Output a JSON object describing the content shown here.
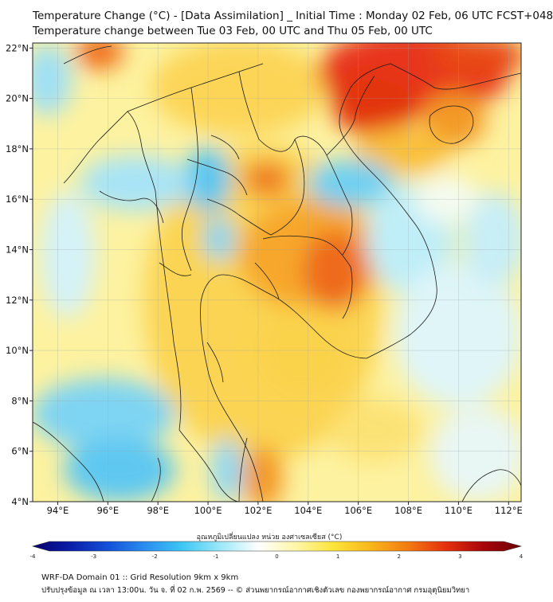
{
  "title_line1": "Temperature Change (°C) - [Data Assimilation] _ Initial Time : Monday 02 Feb, 06 UTC FCST+048",
  "title_line2": "Temperature change between Tue 03 Feb, 00 UTC and Thu 05 Feb, 00 UTC",
  "map": {
    "lon_range": [
      93,
      112.5
    ],
    "lat_range": [
      4,
      22.2
    ],
    "x_ticks": [
      "94°E",
      "96°E",
      "98°E",
      "100°E",
      "102°E",
      "104°E",
      "106°E",
      "108°E",
      "110°E",
      "112°E"
    ],
    "x_tick_values": [
      94,
      96,
      98,
      100,
      102,
      104,
      106,
      108,
      110,
      112
    ],
    "y_ticks": [
      "22°N",
      "20°N",
      "18°N",
      "16°N",
      "14°N",
      "12°N",
      "10°N",
      "8°N",
      "6°N",
      "4°N"
    ],
    "y_tick_values": [
      22,
      20,
      18,
      16,
      14,
      12,
      10,
      8,
      6,
      4
    ],
    "grid": true
  },
  "colorbar": {
    "title": "อุณหภูมิเปลี่ยนแปลง หน่วย องศาเซลเซียส (°C)",
    "min": -4,
    "max": 4,
    "tick_labels": [
      "-4",
      "-3",
      "-2",
      "-1",
      "0",
      "1",
      "2",
      "3",
      "4"
    ],
    "tick_values": [
      -4,
      -3,
      -2,
      -1,
      0,
      1,
      2,
      3,
      4
    ],
    "colors": [
      "#08006e",
      "#0a1ea8",
      "#1450d8",
      "#2a8ef0",
      "#3ec8f4",
      "#9ce8f8",
      "#ffffff",
      "#fff6a8",
      "#fde43a",
      "#f9b61c",
      "#f27a12",
      "#e4300c",
      "#a8040a",
      "#6a0006"
    ]
  },
  "footer_line1": "WRF-DA Domain 01 :: Grid Resolution 9km x 9km",
  "footer_line2": "ปรับปรุงข้อมูล ณ เวลา 13:00น. วัน จ. ที่ 02 ก.พ. 2569 -- © ส่วนพยากรณ์อากาศเชิงตัวเลข กองพยากรณ์อากาศ กรมอุตุนิยมวิทยา"
}
